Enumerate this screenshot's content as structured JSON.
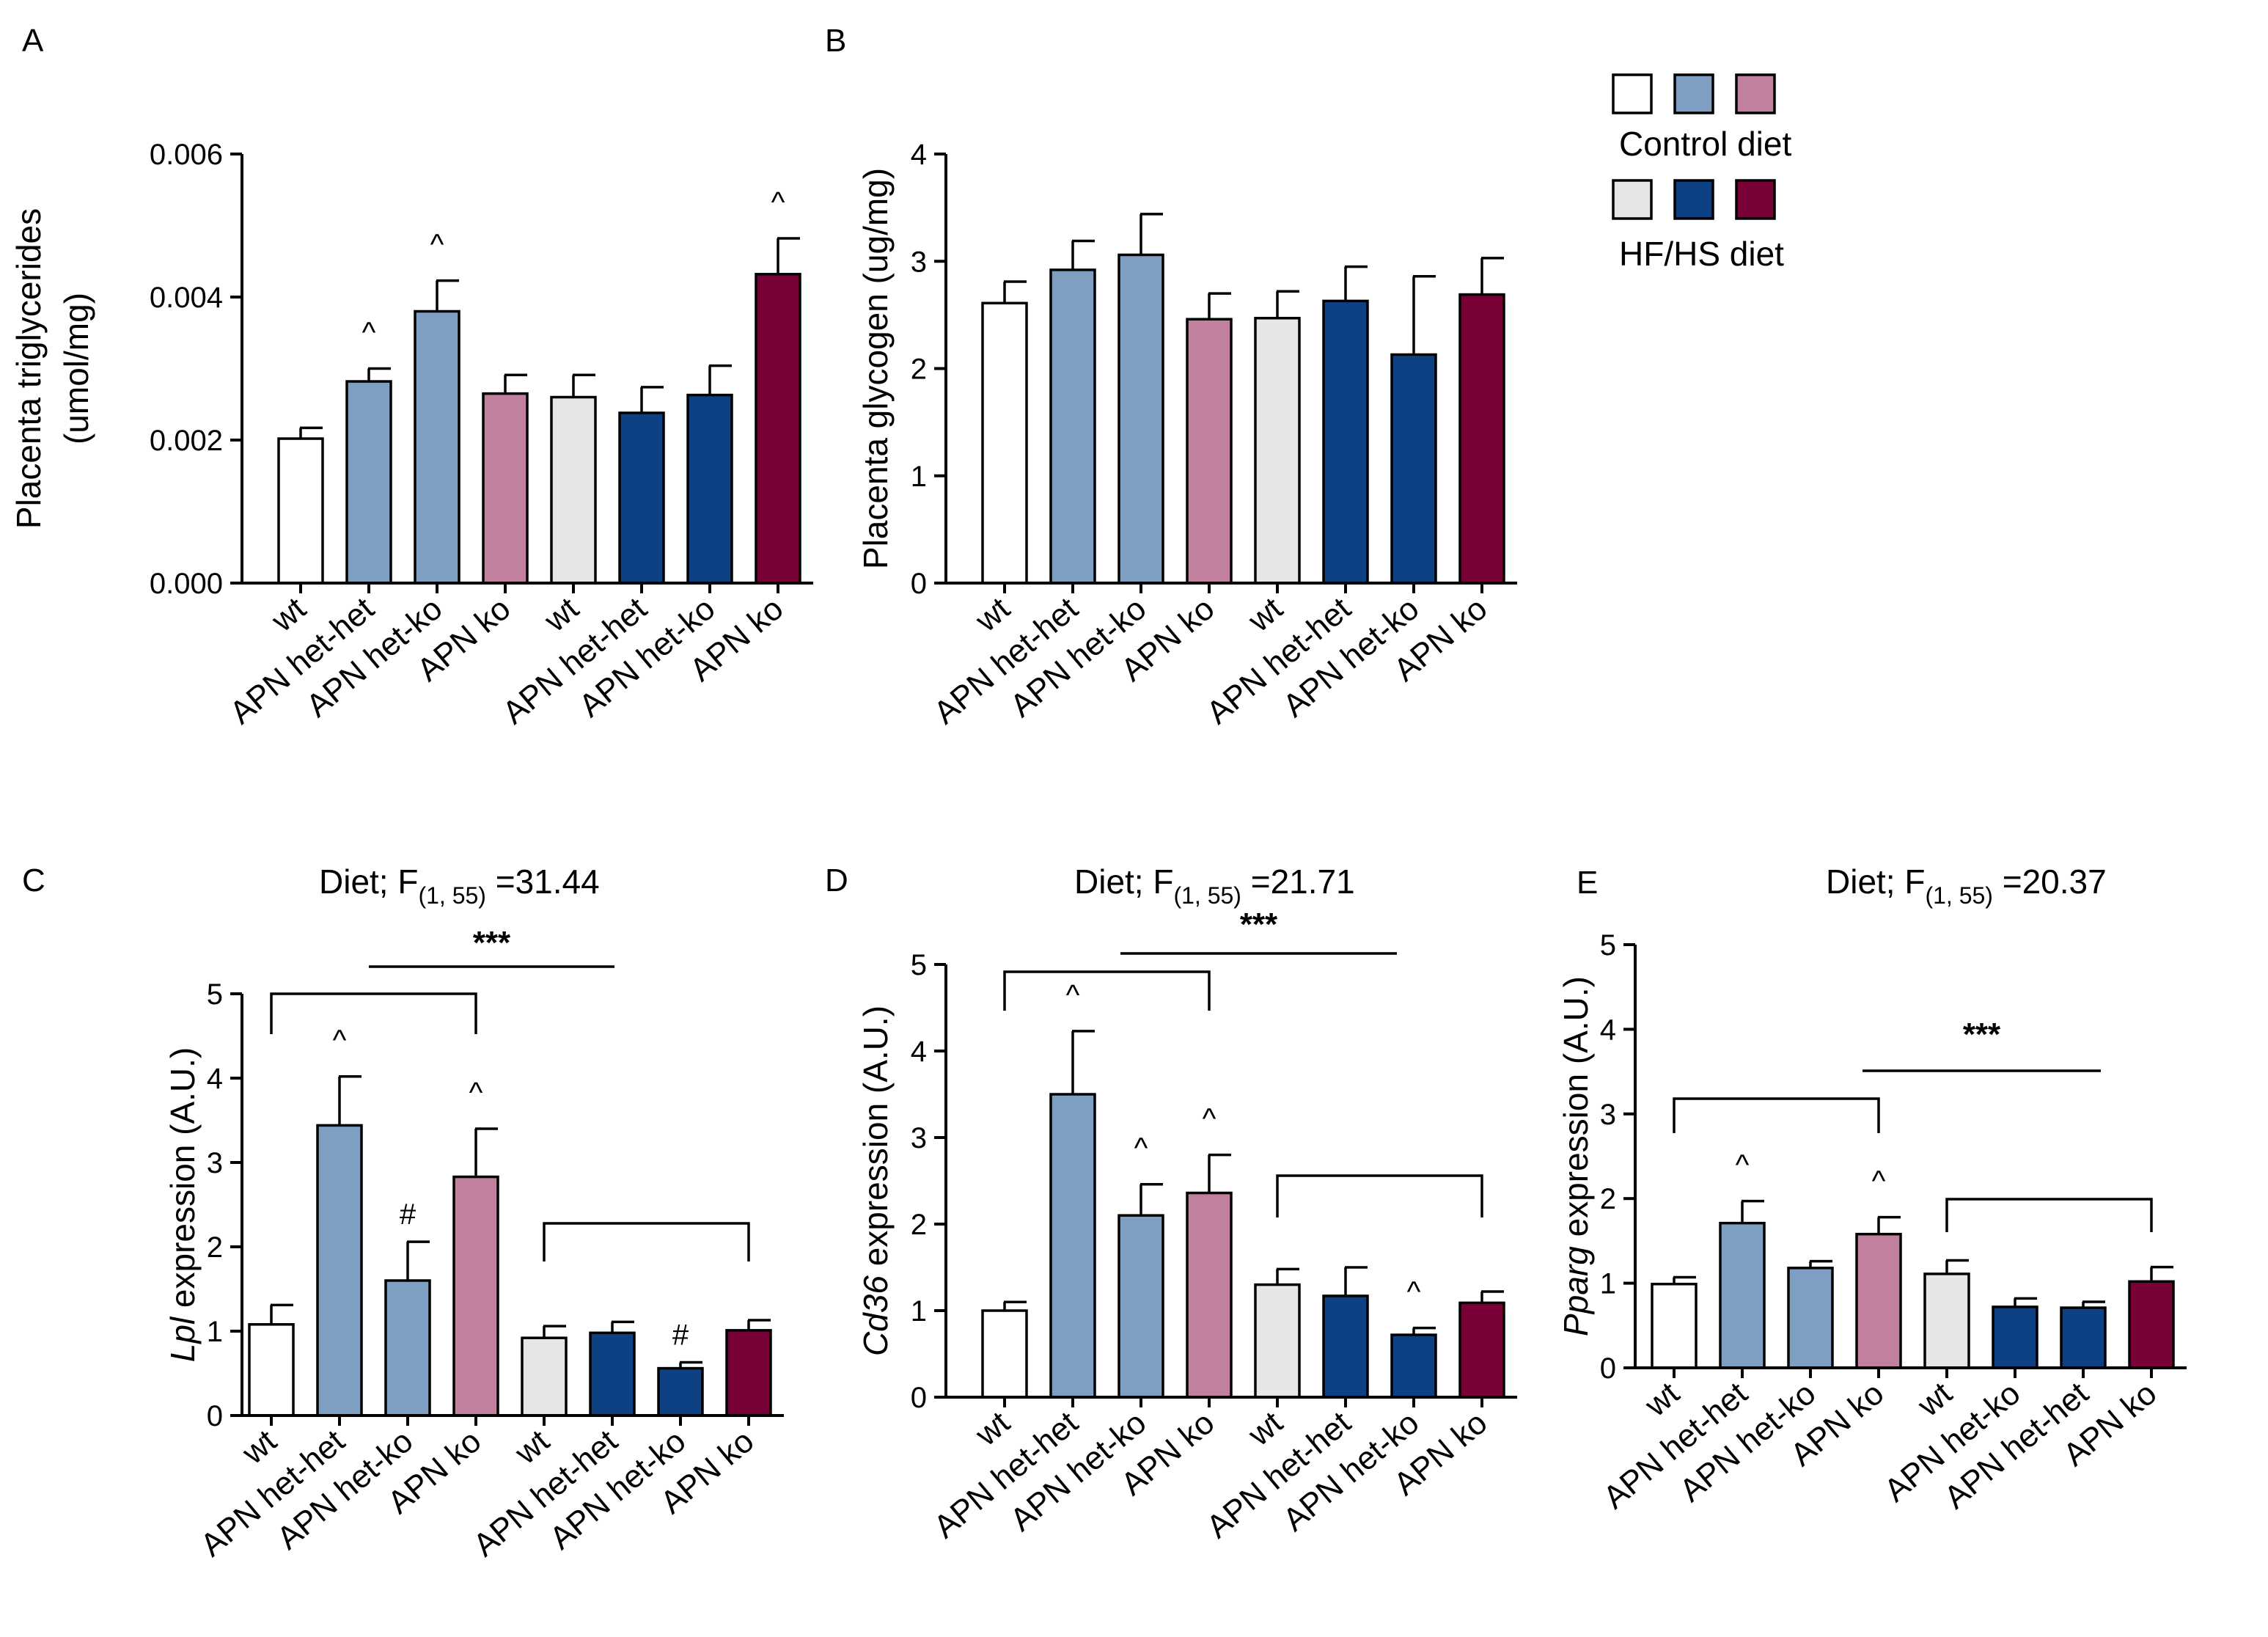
{
  "colors": {
    "wt_control": "#ffffff",
    "het_control": "#7f9fc2",
    "ko_control": "#c0809e",
    "wt_hfhs": "#e6e6e6",
    "het_hfhs": "#0e4183",
    "ko_hfhs": "#7a0038"
  },
  "legend": {
    "control_label": "Control diet",
    "hfhs_label": "HF/HS diet"
  },
  "chart_data": [
    {
      "panel": "A",
      "type": "bar",
      "title": "",
      "ylabel": "Placenta triglycerides\n(umol/mg)",
      "ylim": [
        0,
        0.006
      ],
      "yticks": [
        "0.000",
        "0.002",
        "0.004",
        "0.006"
      ],
      "categories": [
        "wt",
        "APN het-het",
        "APN het-ko",
        "APN ko",
        "wt",
        "APN het-het",
        "APN het-ko",
        "APN ko"
      ],
      "values": [
        0.00202,
        0.00282,
        0.0038,
        0.00265,
        0.0026,
        0.00238,
        0.00263,
        0.00432
      ],
      "errors": [
        0.00015,
        0.00018,
        0.00043,
        0.00026,
        0.00031,
        0.00036,
        0.00041,
        0.0005
      ],
      "bar_colors": [
        "wt_control",
        "het_control",
        "het_control",
        "ko_control",
        "wt_hfhs",
        "het_hfhs",
        "het_hfhs",
        "ko_hfhs"
      ],
      "marks": [
        "",
        "^",
        "^",
        "",
        "",
        "",
        "",
        "^"
      ],
      "stats": null
    },
    {
      "panel": "B",
      "type": "bar",
      "title": "",
      "ylabel": "Placenta glycogen (ug/mg)",
      "ylim": [
        0,
        4
      ],
      "yticks": [
        "0",
        "1",
        "2",
        "3",
        "4"
      ],
      "categories": [
        "wt",
        "APN het-het",
        "APN het-ko",
        "APN ko",
        "wt",
        "APN het-het",
        "APN het-ko",
        "APN ko"
      ],
      "values": [
        2.61,
        2.92,
        3.06,
        2.46,
        2.47,
        2.63,
        2.13,
        2.69
      ],
      "errors": [
        0.2,
        0.27,
        0.38,
        0.24,
        0.25,
        0.32,
        0.73,
        0.34
      ],
      "bar_colors": [
        "wt_control",
        "het_control",
        "het_control",
        "ko_control",
        "wt_hfhs",
        "het_hfhs",
        "het_hfhs",
        "ko_hfhs"
      ],
      "marks": [
        "",
        "",
        "",
        "",
        "",
        "",
        "",
        ""
      ],
      "stats": null
    },
    {
      "panel": "C",
      "type": "bar",
      "title": "Diet; F",
      "title_subscript": "(1, 55)",
      "title_value": " =31.44",
      "ylabel_italic": "Lpl",
      "ylabel_rest": " expression (A.U.)",
      "ylim": [
        0,
        5
      ],
      "yticks": [
        "0",
        "1",
        "2",
        "3",
        "4",
        "5"
      ],
      "categories": [
        "wt",
        "APN het-het",
        "APN het-ko",
        "APN ko",
        "wt",
        "APN het-het",
        "APN het-ko",
        "APN ko"
      ],
      "values": [
        1.08,
        3.44,
        1.6,
        2.83,
        0.92,
        0.98,
        0.56,
        1.01
      ],
      "errors": [
        0.23,
        0.58,
        0.46,
        0.57,
        0.14,
        0.13,
        0.07,
        0.12
      ],
      "bar_colors": [
        "wt_control",
        "het_control",
        "het_control",
        "ko_control",
        "wt_hfhs",
        "het_hfhs",
        "het_hfhs",
        "ko_hfhs"
      ],
      "marks": [
        "",
        "^",
        "#",
        "^",
        "",
        "",
        "#",
        ""
      ],
      "stats": {
        "label": "***"
      }
    },
    {
      "panel": "D",
      "type": "bar",
      "title": "Diet; F",
      "title_subscript": "(1, 55)",
      "title_value": " =21.71",
      "ylabel_italic": "Cd36",
      "ylabel_rest": " expression (A.U.)",
      "ylim": [
        0,
        5
      ],
      "yticks": [
        "0",
        "1",
        "2",
        "3",
        "4",
        "5"
      ],
      "categories": [
        "wt",
        "APN het-het",
        "APN het-ko",
        "APN ko",
        "wt",
        "APN het-het",
        "APN het-ko",
        "APN ko"
      ],
      "values": [
        1.0,
        3.5,
        2.1,
        2.36,
        1.3,
        1.17,
        0.72,
        1.09
      ],
      "errors": [
        0.1,
        0.73,
        0.36,
        0.44,
        0.18,
        0.33,
        0.08,
        0.13
      ],
      "bar_colors": [
        "wt_control",
        "het_control",
        "het_control",
        "ko_control",
        "wt_hfhs",
        "het_hfhs",
        "het_hfhs",
        "ko_hfhs"
      ],
      "marks": [
        "",
        "^",
        "^",
        "^",
        "",
        "",
        "^",
        ""
      ],
      "stats": {
        "label": "***"
      }
    },
    {
      "panel": "E",
      "type": "bar",
      "title": "Diet; F",
      "title_subscript": "(1, 55)",
      "title_value": " =20.37",
      "ylabel_italic": "Pparg",
      "ylabel_rest": " expression (A.U.)",
      "ylim": [
        0,
        5
      ],
      "yticks": [
        "0",
        "1",
        "2",
        "3",
        "4",
        "5"
      ],
      "categories": [
        "wt",
        "APN het-het",
        "APN het-ko",
        "APN ko",
        "wt",
        "APN het-ko",
        "APN het-het",
        "APN ko"
      ],
      "values": [
        0.99,
        1.71,
        1.18,
        1.58,
        1.11,
        0.72,
        0.71,
        1.02
      ],
      "errors": [
        0.08,
        0.26,
        0.08,
        0.2,
        0.16,
        0.1,
        0.07,
        0.17
      ],
      "bar_colors": [
        "wt_control",
        "het_control",
        "het_control",
        "ko_control",
        "wt_hfhs",
        "het_hfhs",
        "het_hfhs",
        "ko_hfhs"
      ],
      "marks": [
        "",
        "^",
        "",
        "^",
        "",
        "",
        "",
        ""
      ],
      "stats": {
        "label": "***"
      }
    }
  ]
}
